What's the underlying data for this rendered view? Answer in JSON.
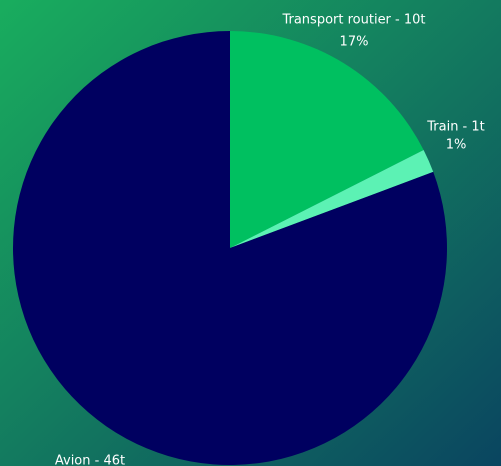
{
  "chart_data": {
    "type": "pie",
    "values": [
      10,
      1,
      46
    ],
    "value_labels": [
      "Transport routier - 10t",
      "Train - 1t",
      "Avion - 46t"
    ],
    "percents": [
      {
        "value": 17,
        "label": "17%"
      },
      {
        "value": 1,
        "label": "1%"
      },
      null
    ],
    "colors": [
      "#00c060",
      "#5cf2b4",
      "#000060"
    ]
  }
}
